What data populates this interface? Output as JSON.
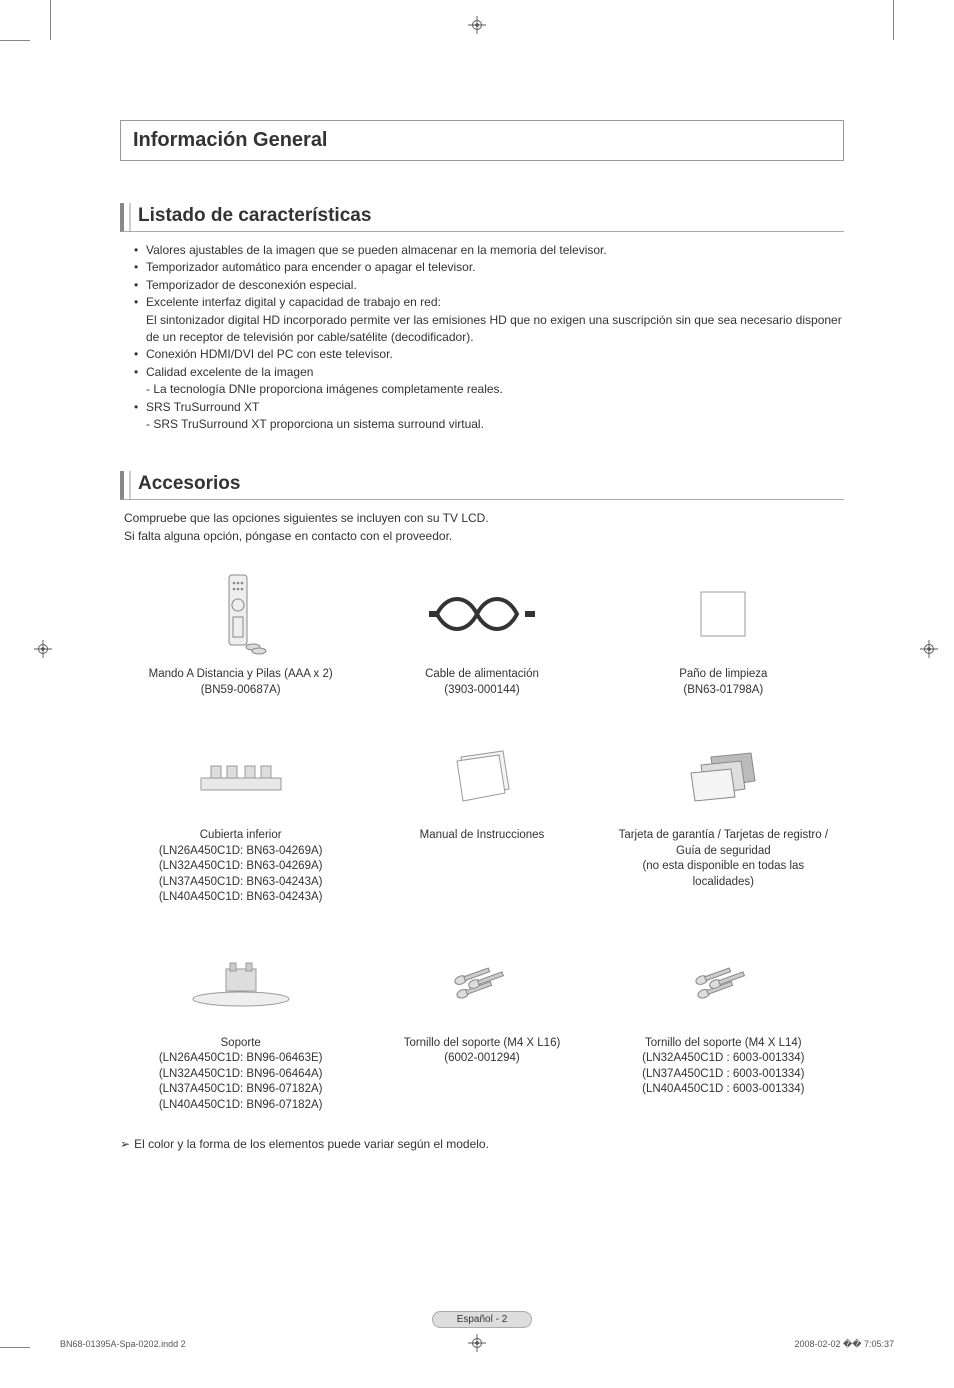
{
  "colors": {
    "text": "#333333",
    "border": "#999999",
    "bg": "#ffffff",
    "badge_bg": "#dddddd",
    "line_gray": "#888888"
  },
  "main_heading": "Información General",
  "section_features": {
    "heading": "Listado de características",
    "items": [
      {
        "text": "Valores ajustables de la imagen que se pueden almacenar en la memoria del televisor."
      },
      {
        "text": "Temporizador automático para encender o apagar el televisor."
      },
      {
        "text": "Temporizador de desconexión especial."
      },
      {
        "text": "Excelente interfaz digital y capacidad de trabajo en red:",
        "sub": "El sintonizador digital HD incorporado permite ver las emisiones HD que no exigen una suscripción sin que sea necesario disponer de un receptor de televisión por cable/satélite (decodificador)."
      },
      {
        "text": "Conexión HDMI/DVI del PC con este televisor."
      },
      {
        "text": "Calidad excelente de la imagen",
        "sub": "- La tecnología DNIe proporciona imágenes completamente reales."
      },
      {
        "text": "SRS TruSurround XT",
        "sub": "- SRS TruSurround XT proporciona un sistema surround virtual."
      }
    ]
  },
  "section_accessories": {
    "heading": "Accesorios",
    "intro_line1": "Compruebe que las opciones siguientes se incluyen con su TV LCD.",
    "intro_line2": "Si falta alguna opción, póngase en contacto con el proveedor.",
    "items": [
      {
        "icon": "remote",
        "label": "Mando A Distancia y Pilas (AAA x 2)\n(BN59-00687A)"
      },
      {
        "icon": "cable",
        "label": "Cable de alimentación\n(3903-000144)"
      },
      {
        "icon": "cloth",
        "label": "Paño de limpieza\n(BN63-01798A)"
      },
      {
        "icon": "bottom-cover",
        "label": "Cubierta inferior\n(LN26A450C1D: BN63-04269A)\n(LN32A450C1D: BN63-04269A)\n(LN37A450C1D: BN63-04243A)\n(LN40A450C1D: BN63-04243A)"
      },
      {
        "icon": "manual",
        "label": "Manual de Instrucciones"
      },
      {
        "icon": "cards",
        "label": "Tarjeta de garantía / Tarjetas de registro / Guía de seguridad\n(no esta disponible en todas las localidades)"
      },
      {
        "icon": "stand",
        "label": "Soporte\n(LN26A450C1D: BN96-06463E)\n(LN32A450C1D: BN96-06464A)\n(LN37A450C1D: BN96-07182A)\n(LN40A450C1D: BN96-07182A)"
      },
      {
        "icon": "screws",
        "label": "Tornillo del soporte (M4 X L16)\n(6002-001294)"
      },
      {
        "icon": "screws",
        "label": "Tornillo del soporte (M4 X L14)\n(LN32A450C1D : 6003-001334)\n(LN37A450C1D : 6003-001334)\n(LN40A450C1D : 6003-001334)"
      }
    ],
    "note": "El color y la forma de los elementos puede variar según el modelo."
  },
  "page_badge": "Español - 2",
  "footer": {
    "left": "BN68-01395A-Spa-0202.indd   2",
    "right": "2008-02-02   �� 7:05:37"
  }
}
